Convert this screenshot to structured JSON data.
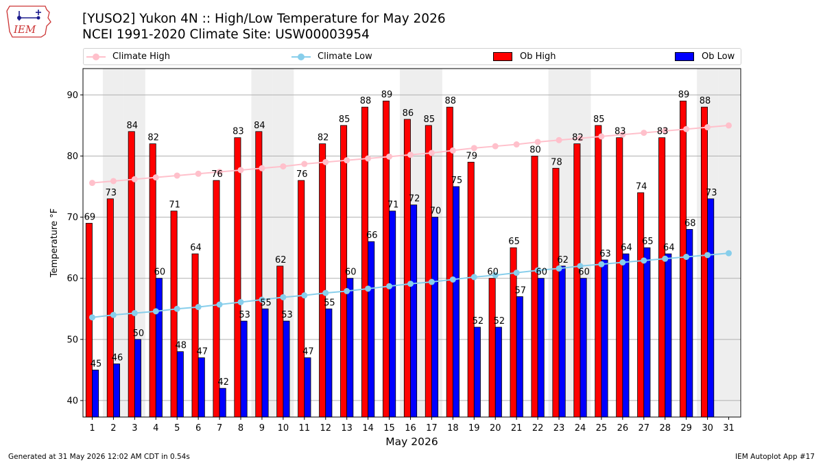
{
  "header": {
    "logo_text": "IEM",
    "title_line1": "[YUSO2] Yukon 4N :: High/Low Temperature for May 2026",
    "title_line2": "NCEI 1991-2020 Climate Site: USW00003954"
  },
  "footer": {
    "left": "Generated at 31 May 2026 12:02 AM CDT in 0.54s",
    "right": "IEM Autoplot App #17"
  },
  "chart_data": {
    "type": "bar",
    "xlabel": "May 2026",
    "ylabel": "Temperature °F",
    "ylim": [
      37.3,
      94.3
    ],
    "yticks": [
      40,
      50,
      60,
      70,
      80,
      90
    ],
    "grid": true,
    "legend_position": "top",
    "categories": [
      "1",
      "2",
      "3",
      "4",
      "5",
      "6",
      "7",
      "8",
      "9",
      "10",
      "11",
      "12",
      "13",
      "14",
      "15",
      "16",
      "17",
      "18",
      "19",
      "20",
      "21",
      "22",
      "23",
      "24",
      "25",
      "26",
      "27",
      "28",
      "29",
      "30",
      "31"
    ],
    "shaded_weekend_days": [
      2,
      3,
      9,
      10,
      16,
      17,
      23,
      24,
      30,
      31
    ],
    "series": [
      {
        "name": "Climate High",
        "kind": "line",
        "color": "#ffc0cb",
        "values": [
          75.6,
          75.9,
          76.2,
          76.5,
          76.8,
          77.1,
          77.4,
          77.7,
          78.0,
          78.3,
          78.7,
          79.0,
          79.3,
          79.6,
          79.9,
          80.2,
          80.5,
          80.9,
          81.3,
          81.6,
          81.9,
          82.3,
          82.6,
          82.9,
          83.2,
          83.5,
          83.8,
          84.1,
          84.4,
          84.7,
          85.0
        ]
      },
      {
        "name": "Climate Low",
        "kind": "line",
        "color": "#87ceeb",
        "values": [
          53.6,
          54.0,
          54.3,
          54.6,
          55.0,
          55.3,
          55.7,
          56.1,
          56.5,
          56.9,
          57.2,
          57.6,
          57.9,
          58.3,
          58.7,
          59.1,
          59.4,
          59.8,
          60.2,
          60.5,
          60.9,
          61.3,
          61.6,
          62.0,
          62.3,
          62.6,
          62.9,
          63.2,
          63.5,
          63.8,
          64.1
        ]
      },
      {
        "name": "Ob High",
        "kind": "bar",
        "color": "#ff0000",
        "values": [
          69,
          73,
          84,
          82,
          71,
          64,
          76,
          83,
          84,
          62,
          76,
          82,
          85,
          88,
          89,
          86,
          85,
          88,
          79,
          60,
          65,
          80,
          78,
          82,
          85,
          83,
          74,
          83,
          89,
          88,
          null
        ]
      },
      {
        "name": "Ob Low",
        "kind": "bar",
        "color": "#0000ff",
        "values": [
          45,
          46,
          50,
          60,
          48,
          47,
          42,
          53,
          55,
          53,
          47,
          55,
          60,
          66,
          71,
          72,
          70,
          75,
          52,
          52,
          57,
          60,
          62,
          60,
          63,
          64,
          65,
          64,
          68,
          73,
          null
        ]
      }
    ]
  }
}
